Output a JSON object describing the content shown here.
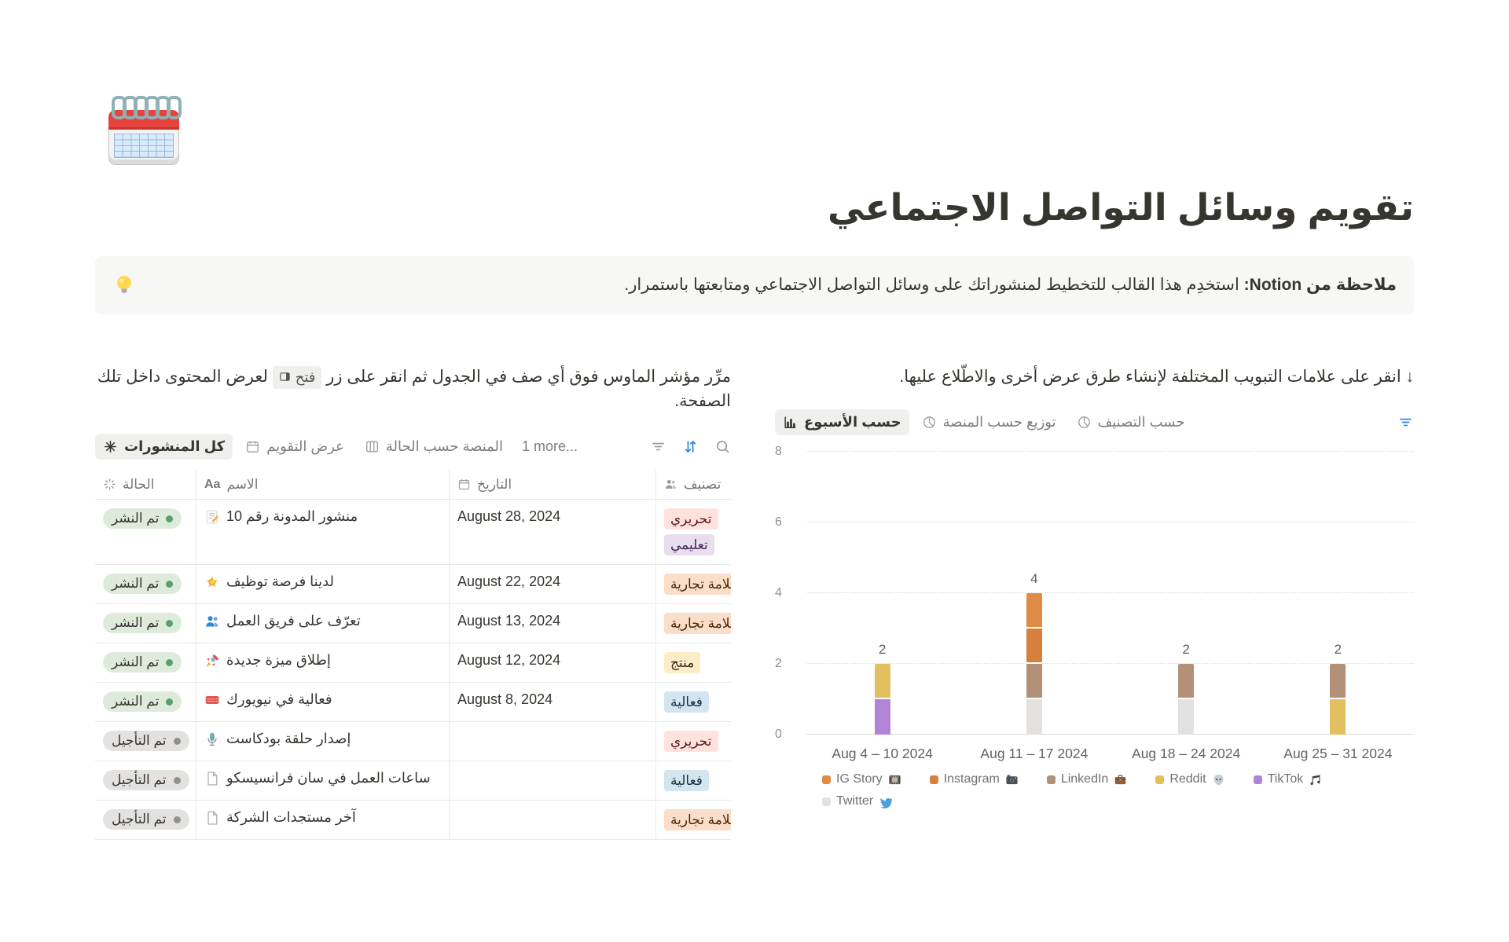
{
  "page": {
    "icon": "spiral-calendar",
    "title": "تقويم وسائل التواصل الاجتماعي",
    "callout": {
      "icon": "light-bulb",
      "bold": "ملاحظة من Notion:",
      "text": "استخدِم هذا القالب للتخطيط لمنشوراتك على وسائل التواصل الاجتماعي ومتابعتها باستمرار."
    }
  },
  "left": {
    "hint_before": "مرِّر مؤشر الماوس فوق أي صف في الجدول ثم انقر على زر",
    "hint_button": "فتح",
    "hint_after": "لعرض المحتوى داخل تلك الصفحة.",
    "tabs": [
      {
        "label": "كل المنشورات",
        "icon": "asterisk",
        "active": true
      },
      {
        "label": "عرض التقويم",
        "icon": "calendar"
      },
      {
        "label": "المنصة حسب الحالة",
        "icon": "board"
      },
      {
        "label": "1 more..."
      }
    ],
    "toolbar_icons": [
      "filter",
      "sort",
      "search"
    ],
    "table": {
      "columns": [
        {
          "label": "الحالة",
          "icon": "status"
        },
        {
          "label": "الاسم",
          "icon_text": "Aa"
        },
        {
          "label": "التاريخ",
          "icon": "calendar"
        },
        {
          "label": "تصنيف",
          "icon": "people"
        }
      ],
      "rows": [
        {
          "status": "تم النشر",
          "status_color": "green",
          "icon": "memo",
          "name": "منشور المدونة رقم 10",
          "date": "August 28, 2024",
          "tags": [
            {
              "label": "تحريري",
              "color": "red"
            },
            {
              "label": "تعليمي",
              "color": "purple"
            }
          ]
        },
        {
          "status": "تم النشر",
          "status_color": "green",
          "icon": "dizzy",
          "name": "لدينا فرصة توظيف",
          "date": "August 22, 2024",
          "tags": [
            {
              "label": "علامة تجارية",
              "color": "orange"
            }
          ]
        },
        {
          "status": "تم النشر",
          "status_color": "green",
          "icon": "busts",
          "name": "تعرّف على فريق العمل",
          "date": "August 13, 2024",
          "tags": [
            {
              "label": "علامة تجارية",
              "color": "orange"
            }
          ]
        },
        {
          "status": "تم النشر",
          "status_color": "green",
          "icon": "rocket",
          "name": "إطلاق ميزة جديدة",
          "date": "August 12, 2024",
          "tags": [
            {
              "label": "منتج",
              "color": "yellow"
            }
          ]
        },
        {
          "status": "تم النشر",
          "status_color": "green",
          "icon": "tickets",
          "name": "فعالية في نيويورك",
          "date": "August 8, 2024",
          "tags": [
            {
              "label": "فعالية",
              "color": "blue"
            }
          ]
        },
        {
          "status": "تم التأجيل",
          "status_color": "gray",
          "icon": "microphone",
          "name": "إصدار حلقة بودكاست",
          "date": "",
          "tags": [
            {
              "label": "تحريري",
              "color": "red"
            }
          ]
        },
        {
          "status": "تم التأجيل",
          "status_color": "gray",
          "icon": "page",
          "name": "ساعات العمل في سان فرانسيسكو",
          "date": "",
          "tags": [
            {
              "label": "فعالية",
              "color": "blue"
            }
          ]
        },
        {
          "status": "تم التأجيل",
          "status_color": "gray",
          "icon": "page",
          "name": "آخر مستجدات الشركة",
          "date": "",
          "tags": [
            {
              "label": "علامة تجارية",
              "color": "orange"
            }
          ]
        }
      ]
    }
  },
  "right": {
    "hint": "↓ انقر على علامات التبويب المختلفة لإنشاء طرق عرض أخرى والاطّلاع عليها.",
    "tabs": [
      {
        "label": "حسب الأسبوع",
        "icon": "barchart",
        "active": true
      },
      {
        "label": "توزيع حسب المنصة",
        "icon": "pie"
      },
      {
        "label": "حسب التصنيف",
        "icon": "pie"
      }
    ],
    "toolbar_icons": [
      "filter-active"
    ]
  },
  "chart_data": {
    "type": "bar",
    "stacked": true,
    "title": "",
    "xlabel": "",
    "ylabel": "",
    "categories": [
      "Aug 4 – 10 2024",
      "Aug 11 – 17 2024",
      "Aug 18 – 24 2024",
      "Aug 25 – 31 2024"
    ],
    "series": [
      {
        "name": "IG Story",
        "icon": "film",
        "color": "#DE8C46",
        "values": [
          0,
          1,
          0,
          0
        ]
      },
      {
        "name": "Instagram",
        "icon": "camera",
        "color": "#D5813C",
        "values": [
          0,
          1,
          0,
          0
        ]
      },
      {
        "name": "LinkedIn",
        "icon": "briefcase",
        "color": "#B39078",
        "values": [
          0,
          1,
          1,
          1
        ]
      },
      {
        "name": "Reddit",
        "icon": "alien",
        "color": "#E3C05F",
        "values": [
          1,
          0,
          0,
          1
        ]
      },
      {
        "name": "TikTok",
        "icon": "music",
        "color": "#B383D6",
        "values": [
          1,
          0,
          0,
          0
        ]
      },
      {
        "name": "Twitter",
        "icon": "bird",
        "color": "#E2E1DF",
        "values": [
          0,
          1,
          1,
          0
        ]
      }
    ],
    "stack_order_bottom_to_top": [
      "Twitter",
      "TikTok",
      "Reddit",
      "LinkedIn",
      "Instagram",
      "IG Story"
    ],
    "totals": [
      2,
      4,
      2,
      2
    ],
    "ylim": [
      0,
      8
    ],
    "yticks": [
      0,
      2,
      4,
      6,
      8
    ],
    "grid": "dotted-horizontal",
    "legend_position": "bottom",
    "legend_rows": [
      [
        "IG Story",
        "Instagram",
        "LinkedIn",
        "Reddit",
        "TikTok"
      ],
      [
        "Twitter"
      ]
    ]
  }
}
